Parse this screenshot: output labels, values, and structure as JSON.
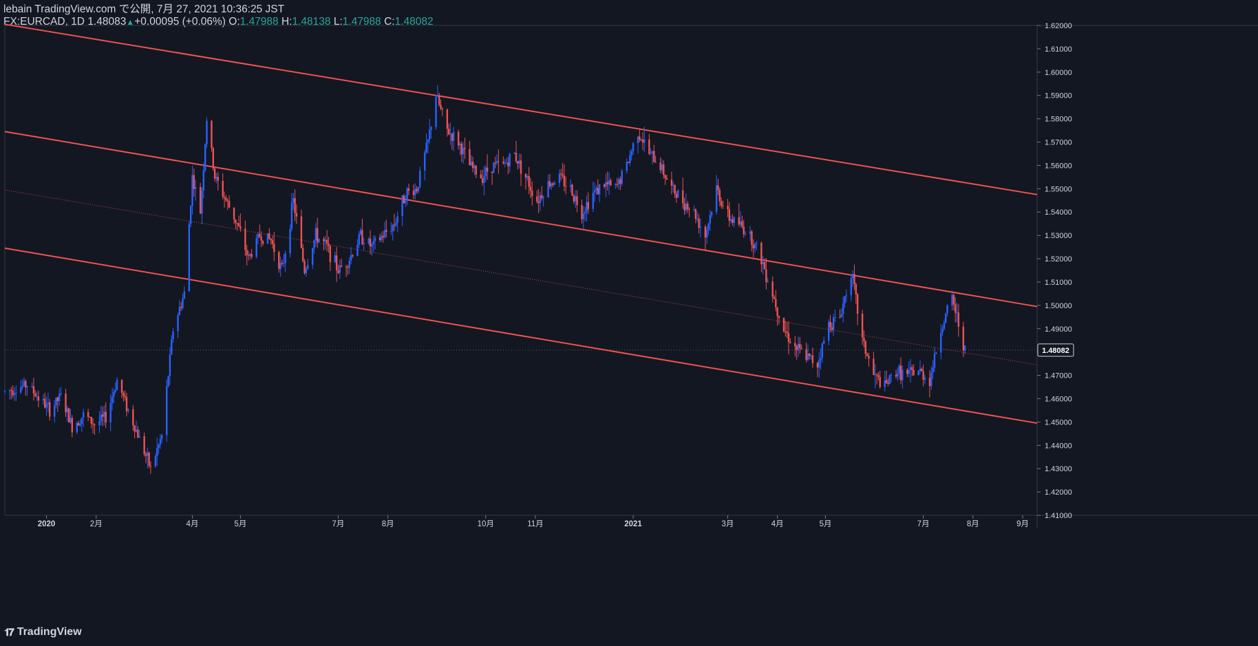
{
  "header": {
    "published": "lebain TradingView.com で公開, 7月 27, 2021 10:36:25 JST",
    "symbol": "FX:EURCAD, 1D",
    "last": "1.48083",
    "change": "+0.00095 (+0.06%)",
    "o_label": "O:",
    "o_value": "1.47988",
    "h_label": "H:",
    "h_value": "1.48138",
    "l_label": "L:",
    "l_value": "1.47988",
    "c_label": "C:",
    "c_value": "1.48082"
  },
  "footer": {
    "brand": "TradingView"
  },
  "colors": {
    "up": "#2962ff",
    "down": "#ef5350",
    "channel": "#f05350",
    "bg": "#131722",
    "grid": "#2a2e39"
  },
  "chart_data": {
    "type": "candlestick",
    "symbol": "FX:EURCAD",
    "interval": "1D",
    "ylim": [
      1.41,
      1.62
    ],
    "y_ticks": [
      "1.41000",
      "1.42000",
      "1.43000",
      "1.44000",
      "1.45000",
      "1.46000",
      "1.47000",
      "1.48000",
      "1.49000",
      "1.50000",
      "1.51000",
      "1.52000",
      "1.53000",
      "1.54000",
      "1.55000",
      "1.56000",
      "1.57000",
      "1.58000",
      "1.59000",
      "1.60000",
      "1.61000",
      "1.62000"
    ],
    "x_ticks": [
      {
        "label": "2020",
        "date": "2020-01-01"
      },
      {
        "label": "2月",
        "date": "2020-02-01"
      },
      {
        "label": "4月",
        "date": "2020-04-01"
      },
      {
        "label": "5月",
        "date": "2020-05-01"
      },
      {
        "label": "7月",
        "date": "2020-07-01"
      },
      {
        "label": "8月",
        "date": "2020-08-01"
      },
      {
        "label": "10月",
        "date": "2020-10-01"
      },
      {
        "label": "11月",
        "date": "2020-11-01"
      },
      {
        "label": "2021",
        "date": "2021-01-01"
      },
      {
        "label": "3月",
        "date": "2021-03-01"
      },
      {
        "label": "4月",
        "date": "2021-04-01"
      },
      {
        "label": "5月",
        "date": "2021-05-01"
      },
      {
        "label": "7月",
        "date": "2021-07-01"
      },
      {
        "label": "8月",
        "date": "2021-08-01"
      },
      {
        "label": "9月",
        "date": "2021-09-01"
      }
    ],
    "price_label": "1.48082",
    "last_price": 1.48082,
    "price_path": [
      [
        "2019-12-06",
        1.463
      ],
      [
        "2019-12-20",
        1.466
      ],
      [
        "2020-01-03",
        1.455
      ],
      [
        "2020-01-10",
        1.461
      ],
      [
        "2020-01-17",
        1.448
      ],
      [
        "2020-01-24",
        1.453
      ],
      [
        "2020-01-31",
        1.449
      ],
      [
        "2020-02-07",
        1.452
      ],
      [
        "2020-02-14",
        1.468
      ],
      [
        "2020-02-21",
        1.455
      ],
      [
        "2020-02-28",
        1.443
      ],
      [
        "2020-03-06",
        1.43
      ],
      [
        "2020-03-13",
        1.444
      ],
      [
        "2020-03-20",
        1.49
      ],
      [
        "2020-03-27",
        1.505
      ],
      [
        "2020-04-01",
        1.555
      ],
      [
        "2020-04-06",
        1.54
      ],
      [
        "2020-04-10",
        1.58
      ],
      [
        "2020-04-15",
        1.555
      ],
      [
        "2020-04-22",
        1.545
      ],
      [
        "2020-04-29",
        1.535
      ],
      [
        "2020-05-06",
        1.52
      ],
      [
        "2020-05-13",
        1.53
      ],
      [
        "2020-05-20",
        1.528
      ],
      [
        "2020-05-27",
        1.515
      ],
      [
        "2020-06-03",
        1.545
      ],
      [
        "2020-06-10",
        1.515
      ],
      [
        "2020-06-17",
        1.53
      ],
      [
        "2020-06-24",
        1.525
      ],
      [
        "2020-07-01",
        1.515
      ],
      [
        "2020-07-08",
        1.52
      ],
      [
        "2020-07-15",
        1.53
      ],
      [
        "2020-07-22",
        1.525
      ],
      [
        "2020-07-29",
        1.53
      ],
      [
        "2020-08-05",
        1.535
      ],
      [
        "2020-08-12",
        1.548
      ],
      [
        "2020-08-19",
        1.55
      ],
      [
        "2020-08-26",
        1.57
      ],
      [
        "2020-08-31",
        1.59
      ],
      [
        "2020-09-07",
        1.575
      ],
      [
        "2020-09-14",
        1.57
      ],
      [
        "2020-09-21",
        1.56
      ],
      [
        "2020-09-28",
        1.555
      ],
      [
        "2020-10-05",
        1.56
      ],
      [
        "2020-10-12",
        1.56
      ],
      [
        "2020-10-19",
        1.565
      ],
      [
        "2020-10-26",
        1.555
      ],
      [
        "2020-11-02",
        1.545
      ],
      [
        "2020-11-09",
        1.552
      ],
      [
        "2020-11-16",
        1.555
      ],
      [
        "2020-11-23",
        1.55
      ],
      [
        "2020-11-30",
        1.54
      ],
      [
        "2020-12-07",
        1.548
      ],
      [
        "2020-12-14",
        1.552
      ],
      [
        "2020-12-21",
        1.55
      ],
      [
        "2020-12-28",
        1.56
      ],
      [
        "2021-01-04",
        1.575
      ],
      [
        "2021-01-11",
        1.565
      ],
      [
        "2021-01-18",
        1.56
      ],
      [
        "2021-01-25",
        1.55
      ],
      [
        "2021-02-01",
        1.545
      ],
      [
        "2021-02-08",
        1.54
      ],
      [
        "2021-02-15",
        1.53
      ],
      [
        "2021-02-22",
        1.55
      ],
      [
        "2021-03-01",
        1.538
      ],
      [
        "2021-03-08",
        1.535
      ],
      [
        "2021-03-15",
        1.53
      ],
      [
        "2021-03-22",
        1.52
      ],
      [
        "2021-03-29",
        1.505
      ],
      [
        "2021-04-05",
        1.49
      ],
      [
        "2021-04-12",
        1.482
      ],
      [
        "2021-04-19",
        1.478
      ],
      [
        "2021-04-26",
        1.475
      ],
      [
        "2021-05-03",
        1.492
      ],
      [
        "2021-05-10",
        1.495
      ],
      [
        "2021-05-17",
        1.515
      ],
      [
        "2021-05-24",
        1.485
      ],
      [
        "2021-05-31",
        1.47
      ],
      [
        "2021-06-07",
        1.465
      ],
      [
        "2021-06-14",
        1.472
      ],
      [
        "2021-06-21",
        1.47
      ],
      [
        "2021-06-28",
        1.472
      ],
      [
        "2021-07-05",
        1.468
      ],
      [
        "2021-07-12",
        1.49
      ],
      [
        "2021-07-19",
        1.503
      ],
      [
        "2021-07-27",
        1.481
      ]
    ],
    "channel": {
      "upper": [
        [
          "2019-12-06",
          1.6205
        ],
        [
          "2021-09-10",
          1.5475
        ]
      ],
      "middle_upper": [
        [
          "2019-12-06",
          1.5745
        ],
        [
          "2021-09-10",
          1.4995
        ]
      ],
      "mid_dotted": [
        [
          "2019-12-06",
          1.5495
        ],
        [
          "2021-09-10",
          1.4745
        ]
      ],
      "lower": [
        [
          "2019-12-06",
          1.5245
        ],
        [
          "2021-09-10",
          1.4495
        ]
      ]
    }
  }
}
